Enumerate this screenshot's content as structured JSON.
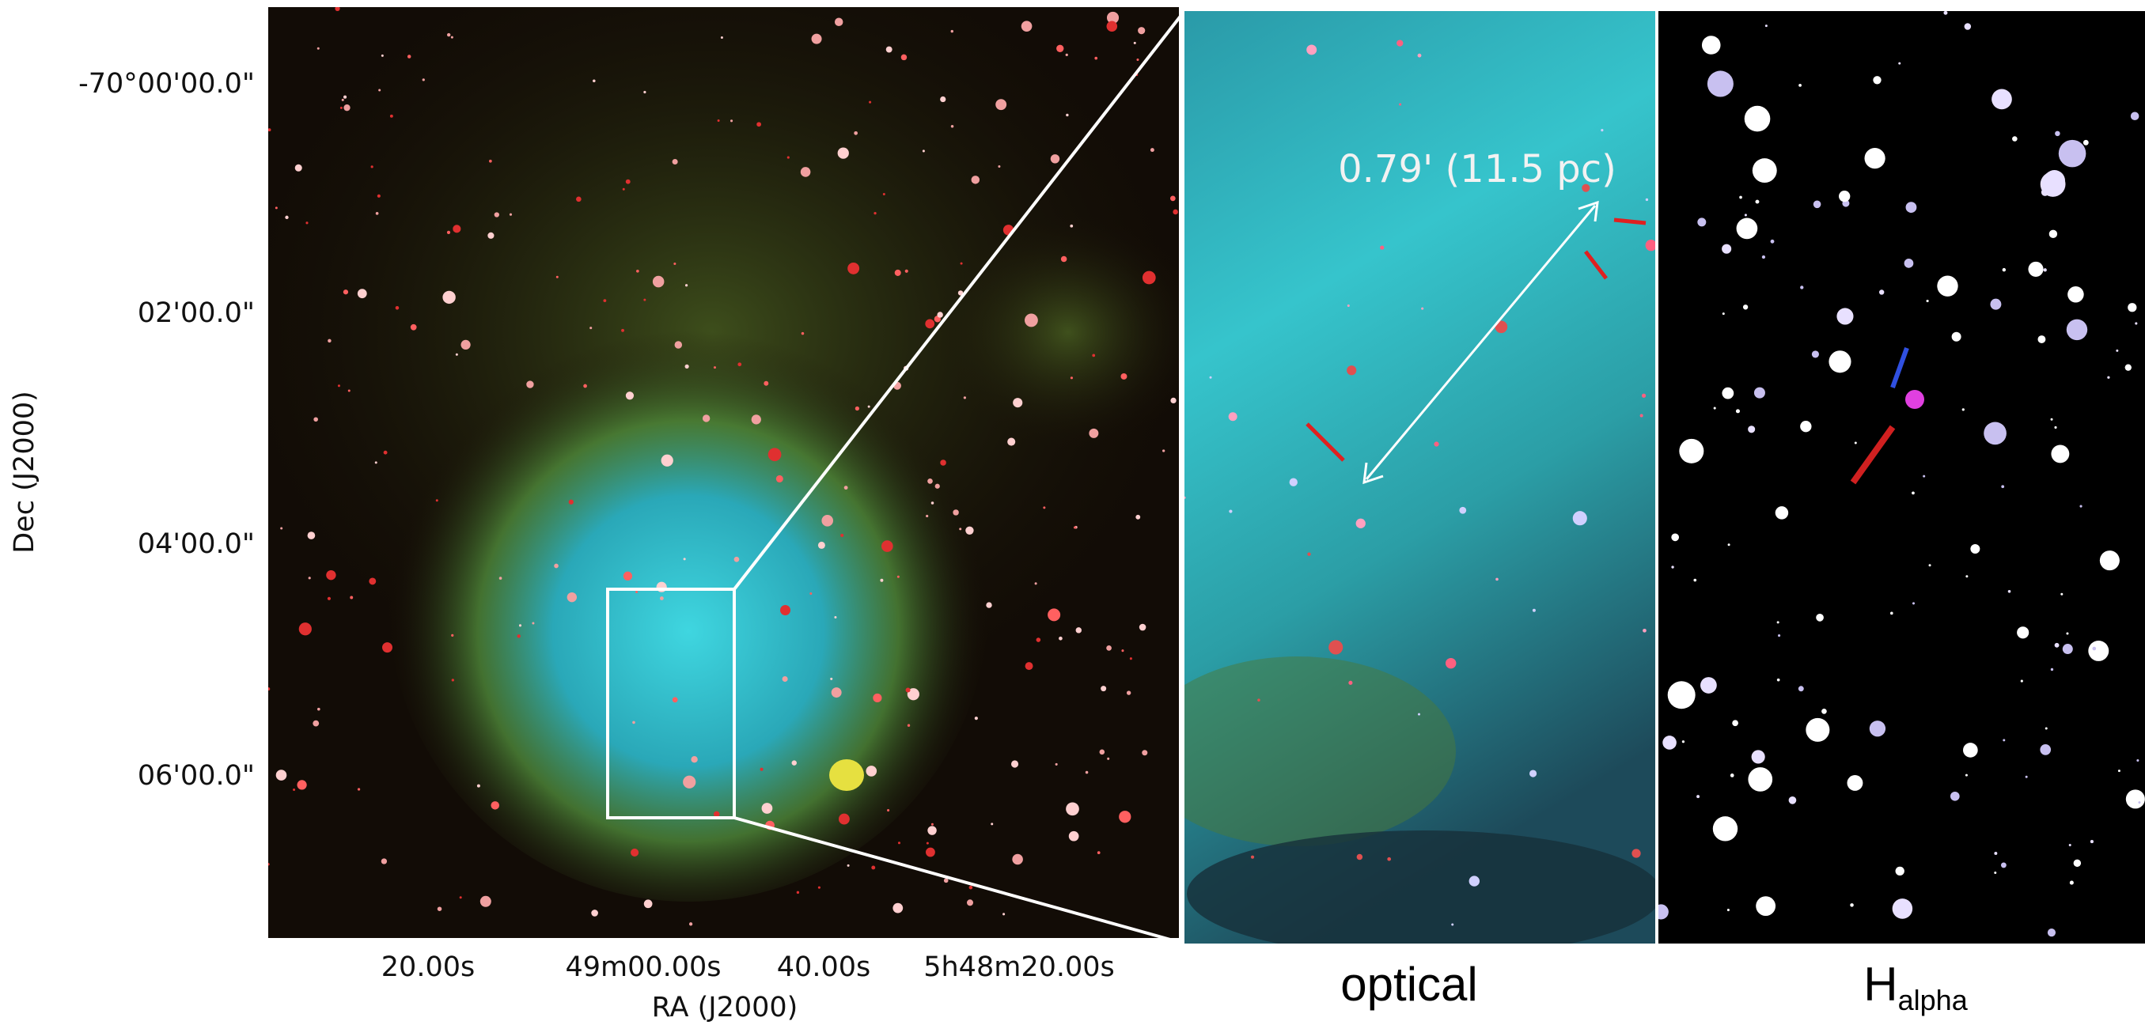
{
  "main_panel": {
    "y_axis": {
      "label": "Dec (J2000)",
      "ticks": [
        "-70°00'00.0\"",
        "02'00.0\"",
        "04'00.0\"",
        "06'00.0\""
      ]
    },
    "x_axis": {
      "label": "RA (J2000)",
      "ticks": [
        "20.00s",
        "49m00.00s",
        "40.00s",
        "5h48m20.00s"
      ]
    }
  },
  "zoom_panel": {
    "annotation": "0.79' (11.5 pc)",
    "label": "optical"
  },
  "halpha_panel": {
    "label": "H",
    "label_subscript": "alpha"
  }
}
